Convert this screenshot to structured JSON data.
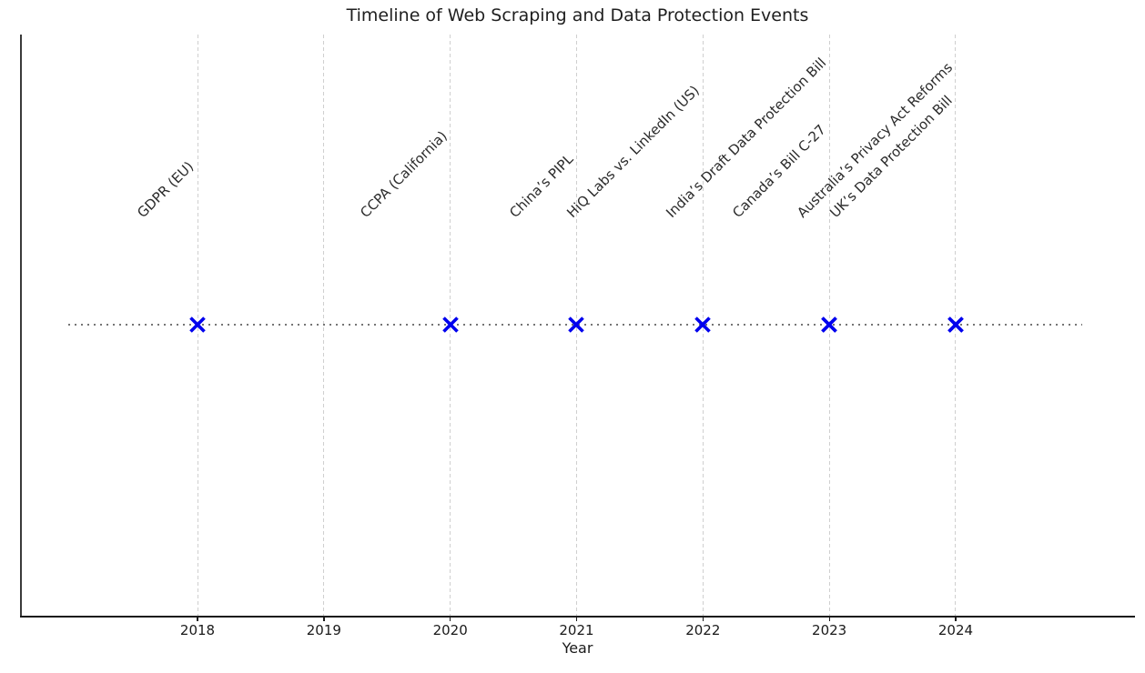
{
  "chart_data": {
    "type": "scatter",
    "title": "Timeline of Web Scraping and Data Protection Events",
    "xlabel": "Year",
    "x_ticks": [
      "2018",
      "2019",
      "2020",
      "2021",
      "2022",
      "2023",
      "2024"
    ],
    "xlim": [
      2016.6,
      2025.4
    ],
    "grid": {
      "vertical": true,
      "style": "dashed",
      "color": "#cfcfcf"
    },
    "baseline": {
      "style": "dotted",
      "color": "#757575"
    },
    "marker": {
      "symbol": "x",
      "color": "#0000ee"
    },
    "events": [
      {
        "year": 2018,
        "label": "GDPR (EU)"
      },
      {
        "year": 2020,
        "label": "CCPA (California)"
      },
      {
        "year": 2021,
        "label": "China’s PIPL"
      },
      {
        "year": 2022,
        "label": "HiQ Labs vs. LinkedIn (US)"
      },
      {
        "year": 2023,
        "label": "India’s Draft Data Protection Bill"
      },
      {
        "year": 2023,
        "label": "Canada’s Bill C-27"
      },
      {
        "year": 2024,
        "label": "Australia’s Privacy Act Reforms"
      },
      {
        "year": 2024,
        "label": "UK’s Data Protection Bill"
      }
    ]
  }
}
